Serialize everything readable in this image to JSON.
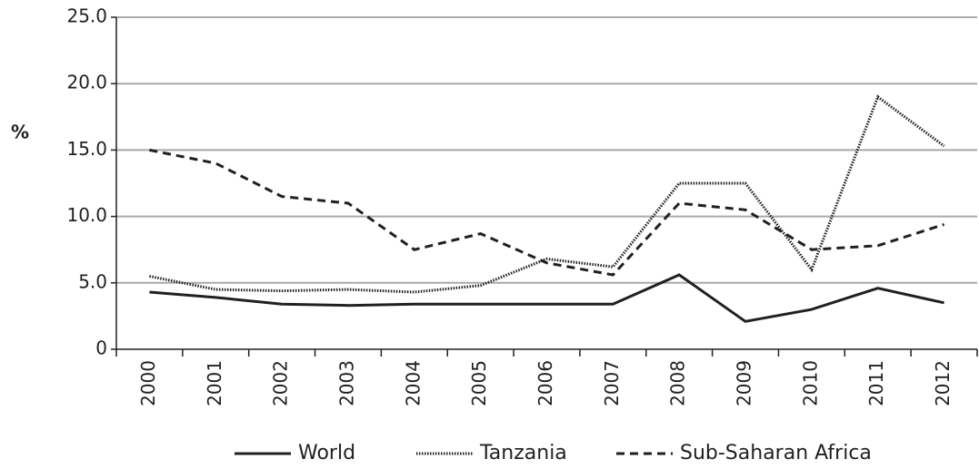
{
  "chart_data": {
    "type": "line",
    "y_label": "%",
    "categories": [
      "2000",
      "2001",
      "2002",
      "2003",
      "2004",
      "2005",
      "2006",
      "2007",
      "2008",
      "2009",
      "2010",
      "2011",
      "2012"
    ],
    "series": [
      {
        "name": "World",
        "color": "#231f20",
        "line_style": "solid",
        "values": [
          4.3,
          3.9,
          3.4,
          3.3,
          3.4,
          3.4,
          3.4,
          3.4,
          5.6,
          2.1,
          3.0,
          4.6,
          3.5
        ]
      },
      {
        "name": "Tanzania",
        "color": "#231f20",
        "line_style": "dotted",
        "values": [
          5.5,
          4.5,
          4.4,
          4.5,
          4.3,
          4.8,
          6.8,
          6.2,
          12.5,
          12.5,
          6.0,
          19.0,
          15.3
        ]
      },
      {
        "name": "Sub-Saharan Africa",
        "color": "#231f20",
        "line_style": "dashed",
        "values": [
          15.0,
          14.0,
          11.5,
          11.0,
          7.5,
          8.7,
          6.5,
          5.6,
          11.0,
          10.5,
          7.5,
          7.8,
          9.4
        ]
      }
    ],
    "ylim": [
      0,
      25
    ],
    "yticks": [
      0,
      {
        "value": 5,
        "label": "5.0"
      },
      {
        "value": 10,
        "label": "10.0"
      },
      {
        "value": 15,
        "label": "15.0"
      },
      {
        "value": 20,
        "label": "20.0"
      },
      {
        "value": 25,
        "label": "25.0"
      }
    ],
    "grid": true,
    "legend": "bottom"
  }
}
